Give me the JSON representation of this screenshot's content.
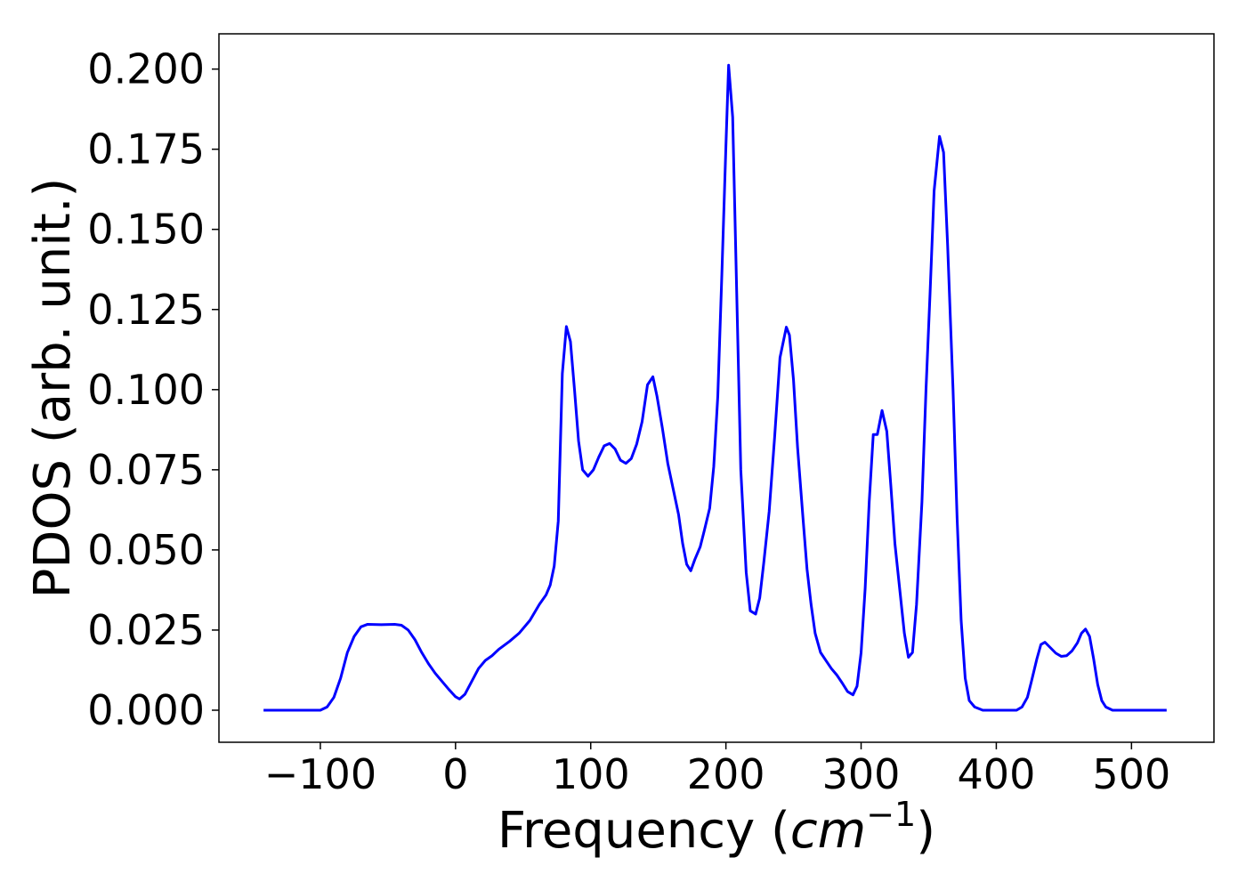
{
  "chart_data": {
    "type": "line",
    "xlabel": [
      "Frequency (",
      "cm",
      "−1",
      ")"
    ],
    "ylabel": "PDOS (arb. unit.)",
    "xlim": [
      -175,
      561
    ],
    "ylim": [
      -0.01,
      0.211
    ],
    "xticks": [
      {
        "value": -100,
        "label": "−100"
      },
      0,
      100,
      200,
      300,
      400,
      500
    ],
    "yticks": [
      {
        "value": 0,
        "label": "0.000"
      },
      {
        "value": 0.025,
        "label": "0.025"
      },
      {
        "value": 0.05,
        "label": "0.050"
      },
      {
        "value": 0.075,
        "label": "0.075"
      },
      {
        "value": 0.1,
        "label": "0.100"
      },
      {
        "value": 0.125,
        "label": "0.125"
      },
      {
        "value": 0.15,
        "label": "0.150"
      },
      {
        "value": 0.175,
        "label": "0.175"
      },
      {
        "value": 0.2,
        "label": "0.200"
      }
    ],
    "grid": false,
    "series": [
      {
        "color": "#0000ff",
        "x": [
          -142,
          -100,
          -95,
          -90,
          -85,
          -80,
          -75,
          -70,
          -65,
          -55,
          -45,
          -40,
          -35,
          -30,
          -25,
          -20,
          -15,
          -10,
          -5,
          0,
          3,
          7,
          12,
          17,
          22,
          27,
          32,
          40,
          47,
          55,
          62,
          67,
          70,
          73,
          76,
          79,
          82,
          85,
          88,
          91,
          94,
          98,
          102,
          106,
          110,
          114,
          118,
          122,
          126,
          130,
          134,
          138,
          142,
          146,
          149,
          153,
          157,
          161,
          165,
          168,
          171,
          174,
          177,
          181,
          184,
          188,
          191,
          194,
          197,
          200,
          202,
          205,
          208,
          211,
          215,
          218,
          222,
          225,
          228,
          232,
          236,
          240,
          244.7,
          247,
          250,
          253,
          257,
          260,
          263,
          266,
          270,
          274,
          278,
          282,
          286,
          290,
          294,
          297,
          300,
          303,
          306,
          309,
          312,
          315.5,
          319,
          322,
          325,
          329,
          332,
          335,
          338,
          341,
          345,
          348,
          351,
          354,
          358,
          361,
          364,
          368,
          371,
          374,
          377,
          380,
          384,
          390,
          415,
          419,
          423,
          426,
          430,
          433,
          436,
          440,
          444,
          448,
          452,
          456,
          460,
          463,
          466,
          469,
          472,
          475,
          478,
          481,
          486,
          526
        ],
        "values": [
          0,
          0,
          0.001,
          0.004,
          0.01,
          0.018,
          0.023,
          0.026,
          0.0268,
          0.0267,
          0.0268,
          0.0265,
          0.025,
          0.022,
          0.018,
          0.0145,
          0.0115,
          0.009,
          0.0065,
          0.0042,
          0.0035,
          0.005,
          0.009,
          0.013,
          0.0155,
          0.017,
          0.019,
          0.0215,
          0.024,
          0.028,
          0.033,
          0.036,
          0.039,
          0.045,
          0.059,
          0.105,
          0.1197,
          0.115,
          0.1,
          0.084,
          0.075,
          0.073,
          0.075,
          0.079,
          0.0825,
          0.0832,
          0.0815,
          0.078,
          0.077,
          0.0785,
          0.083,
          0.09,
          0.1015,
          0.104,
          0.098,
          0.088,
          0.077,
          0.069,
          0.061,
          0.052,
          0.0455,
          0.0435,
          0.047,
          0.051,
          0.056,
          0.063,
          0.076,
          0.098,
          0.136,
          0.176,
          0.2012,
          0.185,
          0.13,
          0.075,
          0.043,
          0.031,
          0.03,
          0.035,
          0.046,
          0.062,
          0.085,
          0.11,
          0.1195,
          0.117,
          0.103,
          0.082,
          0.06,
          0.044,
          0.033,
          0.024,
          0.018,
          0.0155,
          0.013,
          0.011,
          0.0085,
          0.0058,
          0.0048,
          0.0075,
          0.018,
          0.038,
          0.065,
          0.086,
          0.086,
          0.0935,
          0.087,
          0.07,
          0.052,
          0.036,
          0.024,
          0.0165,
          0.018,
          0.033,
          0.065,
          0.1,
          0.13,
          0.162,
          0.179,
          0.174,
          0.145,
          0.1,
          0.06,
          0.028,
          0.01,
          0.003,
          0.001,
          0,
          0,
          0.001,
          0.004,
          0.009,
          0.016,
          0.0205,
          0.0212,
          0.0195,
          0.0178,
          0.0168,
          0.017,
          0.0185,
          0.021,
          0.024,
          0.0253,
          0.023,
          0.016,
          0.008,
          0.003,
          0.001,
          0,
          0
        ]
      }
    ]
  }
}
